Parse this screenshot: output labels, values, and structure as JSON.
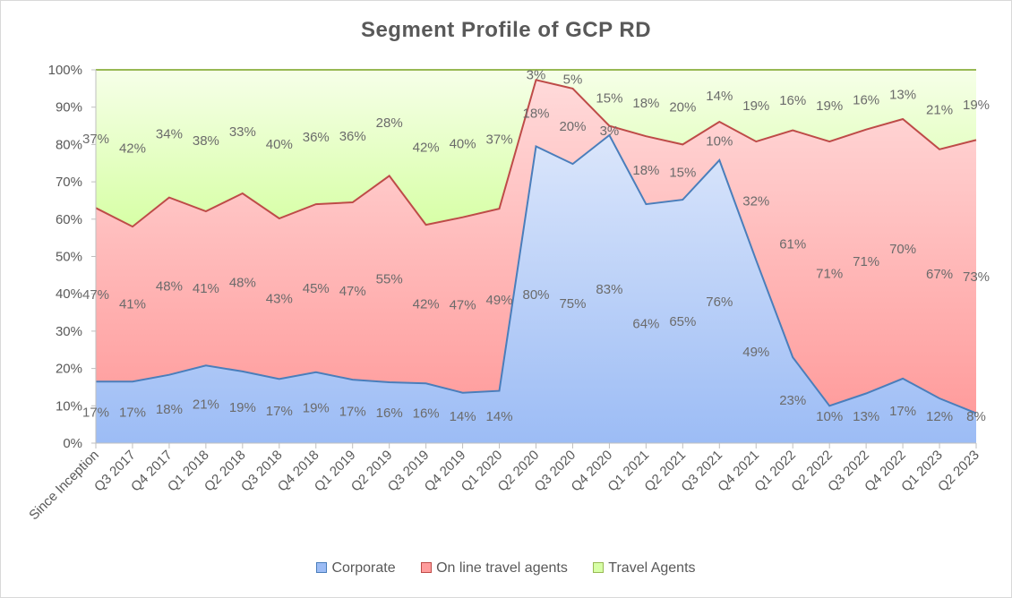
{
  "chart_data": {
    "type": "area",
    "stacked": true,
    "title": "Segment Profile  of GCP  RD",
    "xlabel": "",
    "ylabel": "",
    "ylim": [
      0,
      100
    ],
    "y_ticks": [
      "0%",
      "10%",
      "20%",
      "30%",
      "40%",
      "50%",
      "60%",
      "70%",
      "80%",
      "90%",
      "100%"
    ],
    "categories": [
      "Since Inception",
      "Q3 2017",
      "Q4 2017",
      "Q1 2018",
      "Q2 2018",
      "Q3 2018",
      "Q4 2018",
      "Q1 2019",
      "Q2 2019",
      "Q3 2019",
      "Q4 2019",
      "Q1 2020",
      "Q2 2020",
      "Q3 2020",
      "Q4 2020",
      "Q1 2021",
      "Q2 2021",
      "Q3 2021",
      "Q4 2021",
      "Q1 2022",
      "Q2 2022",
      "Q3 2022",
      "Q4 2022",
      "Q1 2023",
      "Q2 2023"
    ],
    "series": [
      {
        "name": "Corporate",
        "values": [
          16.5,
          16.5,
          18.3,
          20.8,
          19.2,
          17.2,
          19,
          17,
          16.3,
          16,
          13.5,
          14,
          79.5,
          74.8,
          82.5,
          64,
          65.2,
          75.8,
          49,
          23,
          10,
          13.3,
          17.3,
          12,
          8
        ],
        "labels": [
          "17%",
          "17%",
          "18%",
          "21%",
          "19%",
          "17%",
          "19%",
          "17%",
          "16%",
          "16%",
          "14%",
          "14%",
          "80%",
          "75%",
          "83%",
          "64%",
          "65%",
          "76%",
          "49%",
          "23%",
          "10%",
          "13%",
          "17%",
          "12%",
          "8%"
        ],
        "color": "#4a7ebb",
        "fill_top": "#dbe6fb",
        "fill_bottom": "#9cbcf5"
      },
      {
        "name": "On line travel agents",
        "values": [
          46.5,
          41.5,
          47.5,
          41.3,
          47.7,
          43,
          45,
          47.5,
          55.3,
          42.5,
          47,
          48.8,
          17.8,
          20.2,
          2.5,
          18.2,
          14.8,
          10.3,
          31.8,
          60.8,
          70.8,
          70.7,
          69.5,
          66.7,
          73.2
        ],
        "labels": [
          "47%",
          "41%",
          "48%",
          "41%",
          "48%",
          "43%",
          "45%",
          "47%",
          "55%",
          "42%",
          "47%",
          "49%",
          "18%",
          "20%",
          "3%",
          "18%",
          "15%",
          "10%",
          "32%",
          "61%",
          "71%",
          "71%",
          "70%",
          "67%",
          "73%"
        ],
        "color": "#be4b48",
        "fill_top": "#ffdada",
        "fill_bottom": "#ff9c9c"
      },
      {
        "name": "Travel Agents",
        "values": [
          37,
          42,
          34.2,
          37.9,
          33.1,
          39.8,
          36,
          35.5,
          28.4,
          41.5,
          39.5,
          37.2,
          2.7,
          5,
          15,
          17.8,
          20,
          13.9,
          19.2,
          16.2,
          19.2,
          16,
          13.2,
          21.3,
          18.8
        ],
        "labels": [
          "37%",
          "42%",
          "34%",
          "38%",
          "33%",
          "40%",
          "36%",
          "36%",
          "28%",
          "42%",
          "40%",
          "37%",
          "3%",
          "5%",
          "15%",
          "18%",
          "20%",
          "14%",
          "19%",
          "16%",
          "19%",
          "16%",
          "13%",
          "21%",
          "19%"
        ],
        "color": "#98b954",
        "fill_top": "#f6ffe8",
        "fill_bottom": "#d7ffa6"
      }
    ],
    "grid": false,
    "legend_position": "bottom"
  }
}
